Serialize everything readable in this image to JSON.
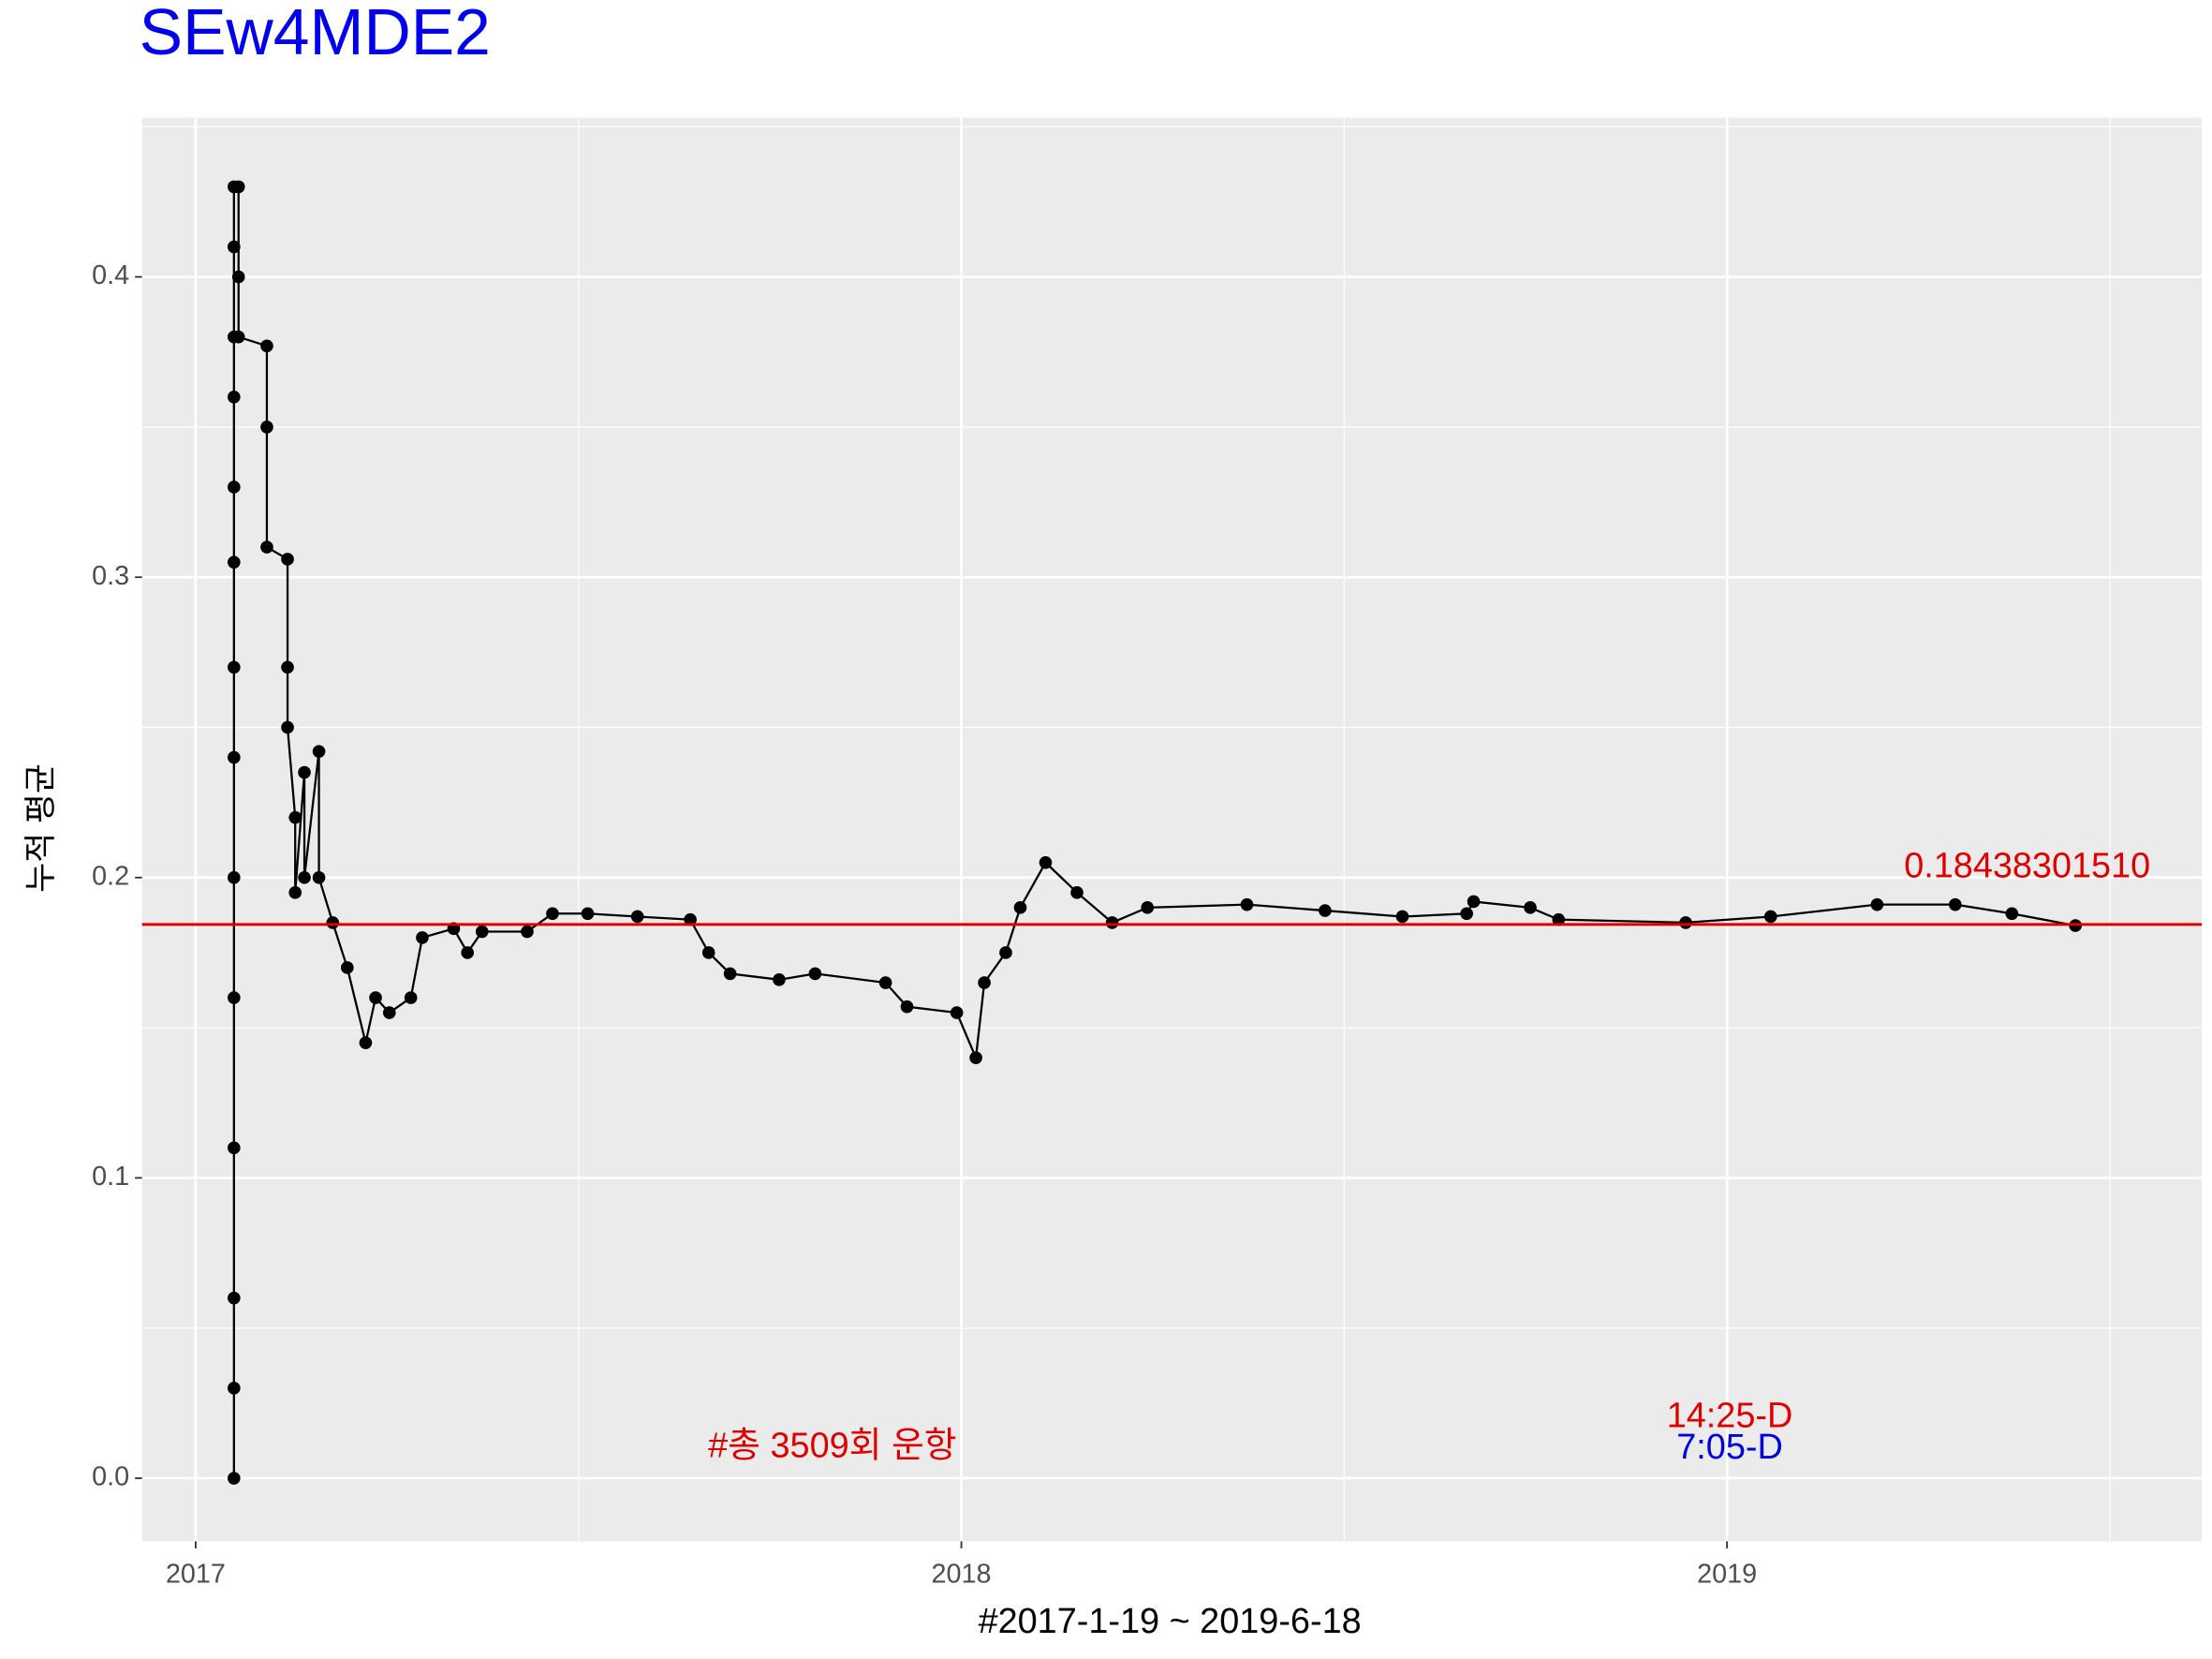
{
  "chart_data": {
    "type": "line",
    "markers": true,
    "title": "SEw4MDE2",
    "x_label": "#2017-1-19 ~ 2019-6-18",
    "y_label": "누적 평균",
    "xlim": [
      2016.93,
      2019.62
    ],
    "xticks": [
      2017,
      2018,
      2019
    ],
    "ylim": [
      -0.021,
      0.453
    ],
    "yticks": [
      {
        "value": 0,
        "label": "0.0"
      },
      0.1,
      0.2,
      0.3,
      0.4
    ],
    "grid": true,
    "series": [
      {
        "name": "누적 평균",
        "color": "#000000",
        "x": [
          2017.05,
          2017.05,
          2017.05,
          2017.05,
          2017.05,
          2017.05,
          2017.05,
          2017.05,
          2017.05,
          2017.05,
          2017.05,
          2017.05,
          2017.05,
          2017.05,
          2017.056,
          2017.056,
          2017.056,
          2017.093,
          2017.093,
          2017.093,
          2017.12,
          2017.12,
          2017.12,
          2017.13,
          2017.13,
          2017.142,
          2017.142,
          2017.161,
          2017.161,
          2017.179,
          2017.198,
          2017.222,
          2017.235,
          2017.253,
          2017.281,
          2017.296,
          2017.337,
          2017.355,
          2017.374,
          2017.433,
          2017.466,
          2017.512,
          2017.577,
          2017.646,
          2017.67,
          2017.698,
          2017.762,
          2017.809,
          2017.901,
          2017.929,
          2017.994,
          2018.019,
          2018.03,
          2018.058,
          2018.077,
          2018.11,
          2018.151,
          2018.197,
          2018.243,
          2018.373,
          2018.475,
          2018.576,
          2018.66,
          2018.669,
          2018.743,
          2018.78,
          2018.946,
          2019.057,
          2019.196,
          2019.298,
          2019.372,
          2019.455
        ],
        "values": [
          0,
          0.03,
          0.06,
          0.11,
          0.16,
          0.2,
          0.24,
          0.27,
          0.305,
          0.33,
          0.36,
          0.38,
          0.41,
          0.43,
          0.43,
          0.4,
          0.38,
          0.377,
          0.35,
          0.31,
          0.306,
          0.27,
          0.25,
          0.22,
          0.195,
          0.235,
          0.2,
          0.242,
          0.2,
          0.185,
          0.17,
          0.145,
          0.16,
          0.155,
          0.16,
          0.18,
          0.183,
          0.175,
          0.182,
          0.182,
          0.188,
          0.188,
          0.187,
          0.186,
          0.175,
          0.168,
          0.166,
          0.168,
          0.165,
          0.157,
          0.155,
          0.14,
          0.165,
          0.175,
          0.19,
          0.205,
          0.195,
          0.185,
          0.19,
          0.191,
          0.189,
          0.187,
          0.188,
          0.192,
          0.19,
          0.186,
          0.185,
          0.187,
          0.191,
          0.191,
          0.188,
          0.184
        ]
      }
    ],
    "reference_line": {
      "value": 0.1843830151,
      "label": "0.18438301510",
      "color": "#e00000"
    },
    "annotations": [
      {
        "text": "#총 3509회 운항",
        "color": "#e00000"
      },
      {
        "text": "14:25-D",
        "color": "#e00000"
      },
      {
        "text": "7:05-D",
        "color": "#0000e0"
      }
    ]
  }
}
